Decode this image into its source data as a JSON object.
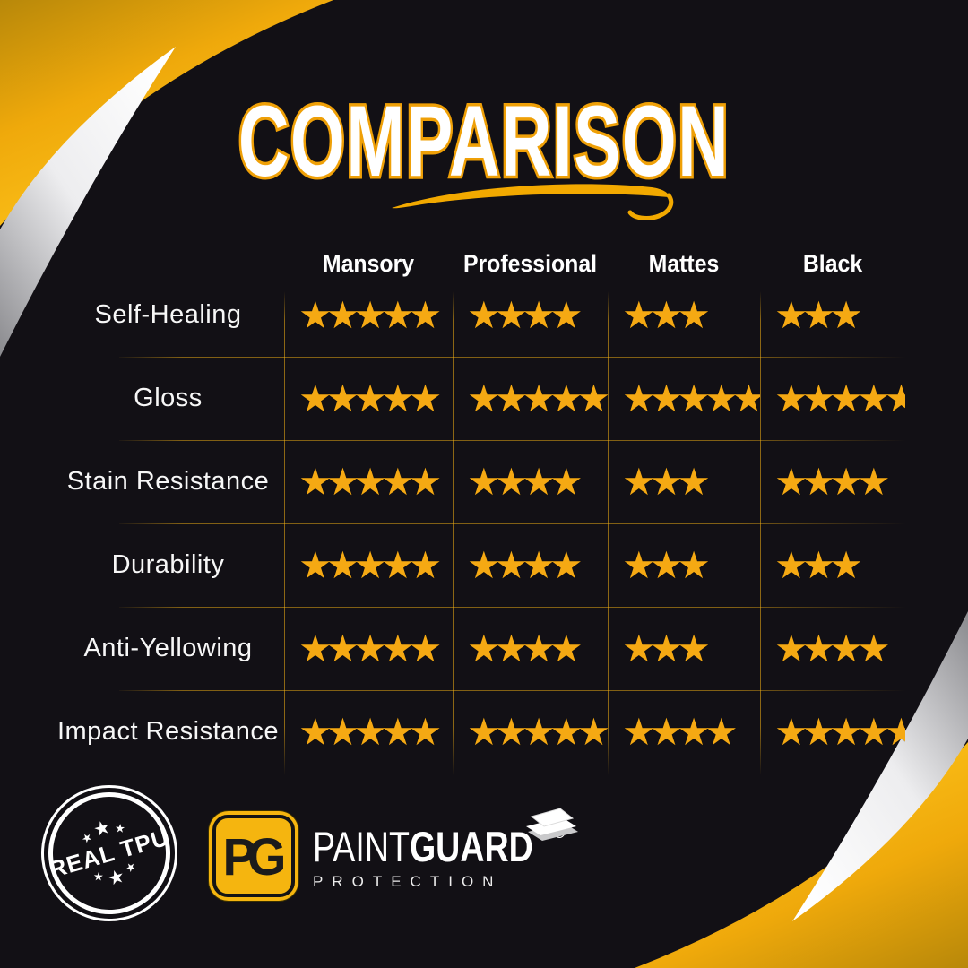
{
  "title": {
    "text": "COMPARISON"
  },
  "table": {
    "columns": [
      "Mansory",
      "Professional",
      "Mattes",
      "Black"
    ],
    "rows": [
      {
        "label": "Self-Healing",
        "ratings": [
          5,
          4,
          3,
          3
        ]
      },
      {
        "label": "Gloss",
        "ratings": [
          5,
          5,
          5,
          5
        ]
      },
      {
        "label": "Stain Resistance",
        "ratings": [
          5,
          4,
          3,
          4
        ]
      },
      {
        "label": "Durability",
        "ratings": [
          5,
          4,
          3,
          3
        ]
      },
      {
        "label": "Anti-Yellowing",
        "ratings": [
          5,
          4,
          3,
          4
        ]
      },
      {
        "label": "Impact Resistance",
        "ratings": [
          5,
          5,
          4,
          5
        ]
      }
    ],
    "max_rating": 5
  },
  "chart_data": {
    "type": "table",
    "title": "COMPARISON",
    "categories": [
      "Self-Healing",
      "Gloss",
      "Stain Resistance",
      "Durability",
      "Anti-Yellowing",
      "Impact Resistance"
    ],
    "series": [
      {
        "name": "Mansory",
        "values": [
          5,
          5,
          5,
          5,
          5,
          5
        ]
      },
      {
        "name": "Professional",
        "values": [
          4,
          5,
          4,
          4,
          4,
          5
        ]
      },
      {
        "name": "Mattes",
        "values": [
          3,
          5,
          3,
          3,
          3,
          4
        ]
      },
      {
        "name": "Black",
        "values": [
          3,
          5,
          4,
          3,
          4,
          5
        ]
      }
    ],
    "value_unit": "stars",
    "value_range": [
      0,
      5
    ]
  },
  "stamp": {
    "text": "REAL TPU"
  },
  "logo": {
    "monogram": "PG",
    "name_regular": "PAINT",
    "name_bold": "GUARD",
    "registered": "®",
    "subtitle": "PROTECTION"
  },
  "icons": {
    "star": "★",
    "film": "film-sheets-icon"
  },
  "colors": {
    "background": "#121015",
    "star_gold": "#F5A913",
    "accent_yellow": "#F7B60D",
    "title_outline": "#EFA007",
    "silver": "#EDEDEF",
    "text": "#FFFFFF"
  }
}
